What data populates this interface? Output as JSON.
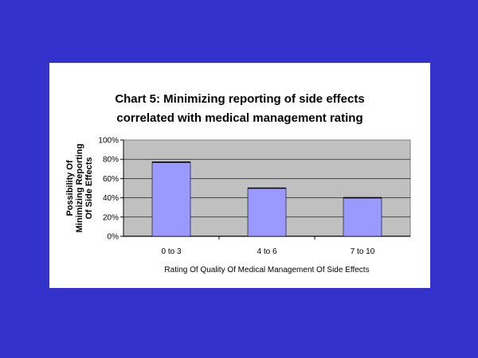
{
  "background_color": "#3333cc",
  "chart_data": {
    "type": "bar",
    "title_lines": [
      "Chart 5: Minimizing reporting of side effects",
      "correlated with medical management rating"
    ],
    "categories": [
      "0 to 3",
      "4 to 6",
      "7 to 10"
    ],
    "values": [
      77,
      50,
      40
    ],
    "y_ticks": [
      "0%",
      "20%",
      "40%",
      "60%",
      "80%",
      "100%"
    ],
    "ylim": [
      0,
      100
    ],
    "ylabel_lines": [
      "Possibility Of",
      "Minimizing Reporting",
      "Of Side Effects"
    ],
    "xlabel": "Rating Of Quality Of Medical Management Of Side Effects",
    "bar_color": "#9999ff",
    "plot_bg": "#c0c0c0",
    "grid": true,
    "legend": "none"
  }
}
